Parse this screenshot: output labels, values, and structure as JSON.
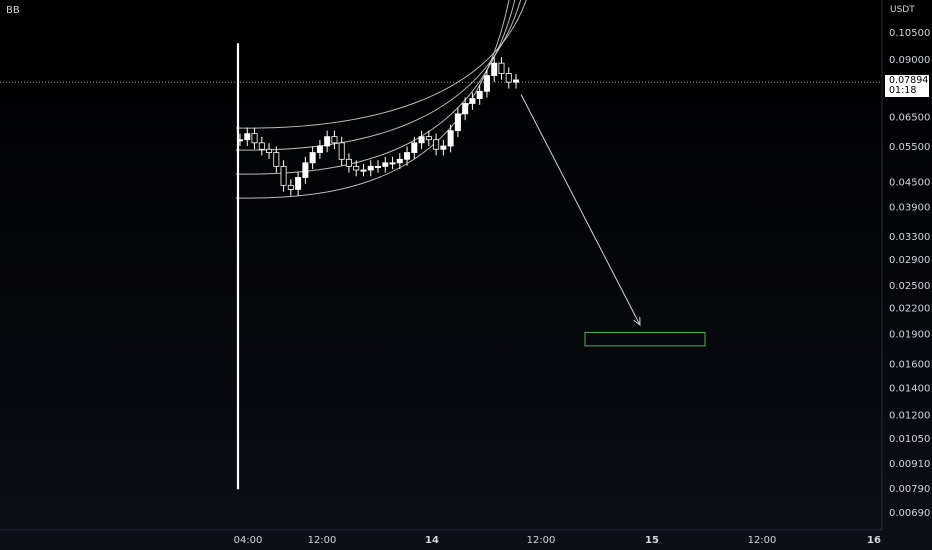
{
  "header": {
    "symbol": "BB",
    "unit": "USDT"
  },
  "price_tag": {
    "price": "0.07894",
    "countdown": "01:18"
  },
  "chart_data": {
    "type": "candlestick",
    "y_scale": "log",
    "y_ticks": [
      "0.10500",
      "0.09000",
      "0.07894",
      "0.06500",
      "0.05500",
      "0.04500",
      "0.03900",
      "0.03300",
      "0.02900",
      "0.02500",
      "0.02200",
      "0.01900",
      "0.01600",
      "0.01400",
      "0.01200",
      "0.01050",
      "0.00910",
      "0.00790",
      "0.00690"
    ],
    "x_ticks": [
      "04:00",
      "12:00",
      "14",
      "12:00",
      "15",
      "12:00",
      "16"
    ],
    "current_price": 0.07894,
    "listing_spike": {
      "high": 0.0985,
      "low": 0.00785
    },
    "price_path": [
      0.057,
      0.059,
      0.056,
      0.054,
      0.053,
      0.049,
      0.044,
      0.043,
      0.046,
      0.05,
      0.053,
      0.055,
      0.058,
      0.056,
      0.051,
      0.049,
      0.048,
      0.048,
      0.049,
      0.049,
      0.05,
      0.05,
      0.051,
      0.053,
      0.056,
      0.058,
      0.057,
      0.054,
      0.055,
      0.06,
      0.066,
      0.07,
      0.072,
      0.075,
      0.082,
      0.088,
      0.083,
      0.079,
      0.08
    ],
    "band_curves": 4,
    "projection": {
      "from": {
        "time": "~16:30 day 14",
        "price": 0.078
      },
      "to": {
        "time": "~06:00 day 15",
        "price": 0.0195
      }
    },
    "target_zone": {
      "price_high": 0.0191,
      "price_low": 0.0177
    }
  },
  "colors": {
    "candle": "#ffffff",
    "band": "#d9d9d9",
    "arrow": "#cfd3dc",
    "zone": "#4caf50",
    "axis_text": "#d1d4dc",
    "gridline": "#cccccc"
  }
}
